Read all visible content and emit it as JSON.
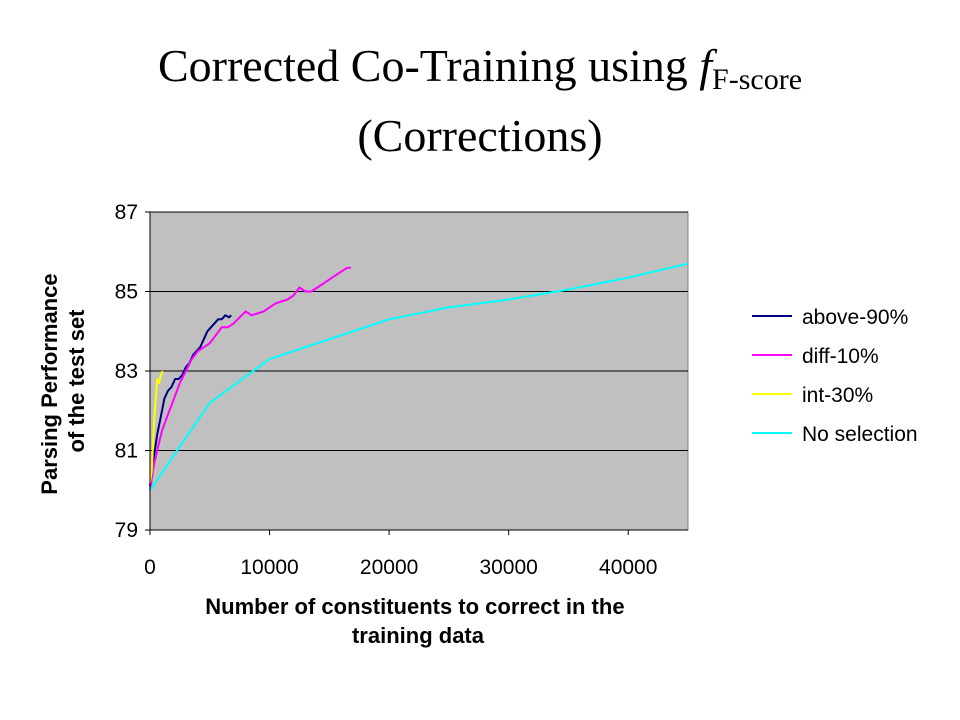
{
  "slide": {
    "title_main": "Corrected Co-Training using ",
    "title_f": "f",
    "title_sub": "F-score",
    "title_line2": "(Corrections)"
  },
  "chart_data": {
    "type": "line",
    "title": "",
    "xlabel_lines": [
      "Number of constituents to correct in the",
      "training data"
    ],
    "ylabel_lines": [
      "Parsing Performance",
      "of the test set"
    ],
    "xlim": [
      0,
      45000
    ],
    "ylim": [
      79,
      87
    ],
    "xticks": [
      0,
      10000,
      20000,
      30000,
      40000
    ],
    "yticks": [
      79,
      81,
      83,
      85,
      87
    ],
    "grid": "horizontal",
    "plot_background": "#c0c0c0",
    "legend_position": "right",
    "series": [
      {
        "name": "above-90%",
        "color": "#000080",
        "x": [
          0,
          200,
          400,
          600,
          800,
          1000,
          1200,
          1500,
          1800,
          2100,
          2400,
          2700,
          3000,
          3300,
          3600,
          3900,
          4200,
          4500,
          4800,
          5100,
          5400,
          5700,
          6000,
          6300,
          6600,
          6800
        ],
        "y": [
          80.1,
          80.6,
          81.0,
          81.4,
          81.7,
          82.0,
          82.3,
          82.5,
          82.6,
          82.8,
          82.8,
          82.9,
          83.1,
          83.2,
          83.4,
          83.5,
          83.6,
          83.8,
          84.0,
          84.1,
          84.2,
          84.3,
          84.3,
          84.4,
          84.35,
          84.4
        ]
      },
      {
        "name": "diff-10%",
        "color": "#ff00ff",
        "x": [
          0,
          300,
          600,
          1000,
          1500,
          2000,
          2500,
          3000,
          3500,
          4000,
          4500,
          5000,
          5500,
          6000,
          6500,
          7000,
          7500,
          8000,
          8500,
          9000,
          9500,
          10000,
          10500,
          11000,
          11500,
          12000,
          12500,
          13000,
          13500,
          14000,
          14500,
          15000,
          15500,
          16000,
          16500,
          16800
        ],
        "y": [
          80.0,
          80.6,
          81.0,
          81.5,
          81.9,
          82.3,
          82.7,
          83.0,
          83.3,
          83.5,
          83.6,
          83.7,
          83.9,
          84.1,
          84.1,
          84.2,
          84.35,
          84.5,
          84.4,
          84.45,
          84.5,
          84.6,
          84.7,
          84.75,
          84.8,
          84.9,
          85.1,
          85.0,
          85.0,
          85.1,
          85.2,
          85.3,
          85.4,
          85.5,
          85.6,
          85.6
        ]
      },
      {
        "name": "int-30%",
        "color": "#ffff00",
        "x": [
          0,
          150,
          300,
          450,
          600,
          750,
          900,
          1050
        ],
        "y": [
          80.2,
          80.5,
          81.5,
          82.2,
          82.8,
          82.7,
          82.9,
          83.0
        ]
      },
      {
        "name": "No selection",
        "color": "#00ffff",
        "x": [
          0,
          5000,
          10000,
          20000,
          25000,
          30000,
          35000,
          40000,
          45000
        ],
        "y": [
          80.0,
          82.2,
          83.3,
          84.3,
          84.6,
          84.8,
          85.05,
          85.35,
          85.7
        ]
      }
    ]
  }
}
